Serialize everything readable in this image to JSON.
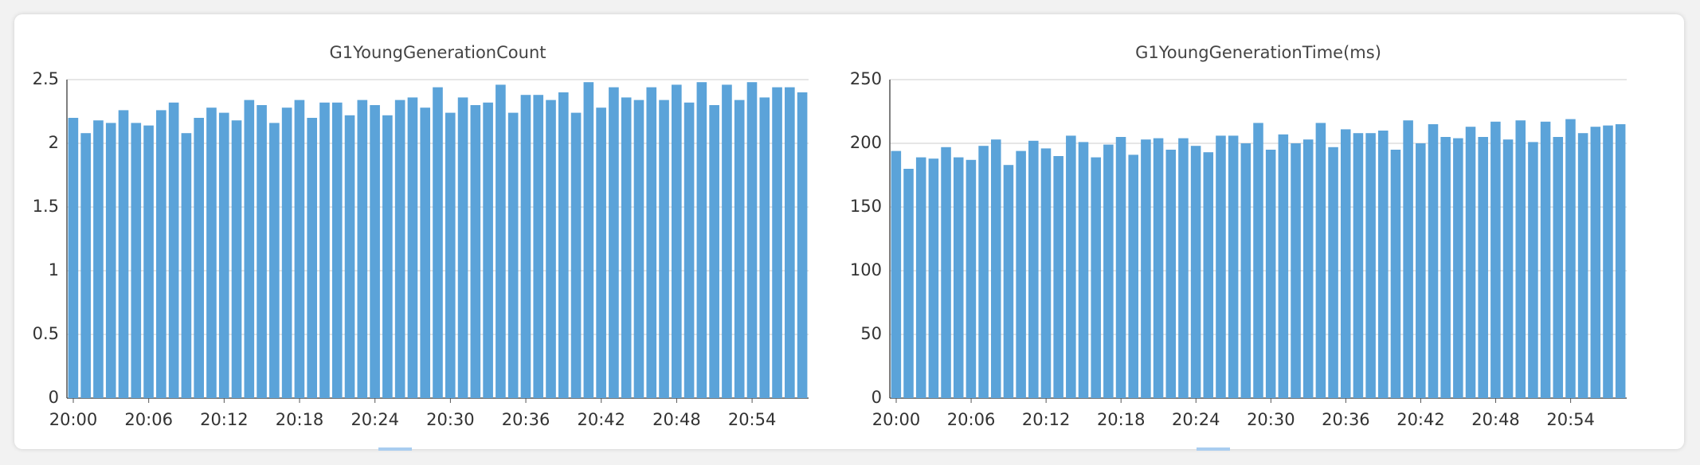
{
  "chart_data": [
    {
      "type": "bar",
      "title": "G1YoungGenerationCount",
      "color": "#5ba3d9",
      "grid": true,
      "categories": [
        "20:00",
        null,
        null,
        null,
        null,
        null,
        "20:06",
        null,
        null,
        null,
        null,
        null,
        "20:12",
        null,
        null,
        null,
        null,
        null,
        "20:18",
        null,
        null,
        null,
        null,
        null,
        "20:24",
        null,
        null,
        null,
        null,
        null,
        "20:30",
        null,
        null,
        null,
        null,
        null,
        "20:36",
        null,
        null,
        null,
        null,
        null,
        "20:42",
        null,
        null,
        null,
        null,
        null,
        "20:48",
        null,
        null,
        null,
        null,
        null,
        "20:54",
        null,
        null,
        null,
        null
      ],
      "values": [
        2.2,
        2.08,
        2.18,
        2.16,
        2.26,
        2.16,
        2.14,
        2.26,
        2.32,
        2.08,
        2.2,
        2.28,
        2.24,
        2.18,
        2.34,
        2.3,
        2.16,
        2.28,
        2.34,
        2.2,
        2.32,
        2.32,
        2.22,
        2.34,
        2.3,
        2.22,
        2.34,
        2.36,
        2.28,
        2.44,
        2.24,
        2.36,
        2.3,
        2.32,
        2.46,
        2.24,
        2.38,
        2.38,
        2.34,
        2.4,
        2.24,
        2.48,
        2.28,
        2.44,
        2.36,
        2.34,
        2.44,
        2.34,
        2.46,
        2.32,
        2.48,
        2.3,
        2.46,
        2.34,
        2.48,
        2.36,
        2.44,
        2.44,
        2.4
      ],
      "ylim": [
        0,
        2.5
      ],
      "yticks": [
        0,
        0.5,
        1,
        1.5,
        2,
        2.5
      ]
    },
    {
      "type": "bar",
      "title": "G1YoungGenerationTime(ms)",
      "color": "#5ba3d9",
      "grid": true,
      "categories": [
        "20:00",
        null,
        null,
        null,
        null,
        null,
        "20:06",
        null,
        null,
        null,
        null,
        null,
        "20:12",
        null,
        null,
        null,
        null,
        null,
        "20:18",
        null,
        null,
        null,
        null,
        null,
        "20:24",
        null,
        null,
        null,
        null,
        null,
        "20:30",
        null,
        null,
        null,
        null,
        null,
        "20:36",
        null,
        null,
        null,
        null,
        null,
        "20:42",
        null,
        null,
        null,
        null,
        null,
        "20:48",
        null,
        null,
        null,
        null,
        null,
        "20:54",
        null,
        null,
        null,
        null
      ],
      "values": [
        194,
        180,
        189,
        188,
        197,
        189,
        187,
        198,
        203,
        183,
        194,
        202,
        196,
        190,
        206,
        201,
        189,
        199,
        205,
        191,
        203,
        204,
        195,
        204,
        198,
        193,
        206,
        206,
        200,
        216,
        195,
        207,
        200,
        203,
        216,
        197,
        211,
        208,
        208,
        210,
        195,
        218,
        200,
        215,
        205,
        204,
        213,
        205,
        217,
        203,
        218,
        201,
        217,
        205,
        219,
        208,
        213,
        214,
        215
      ],
      "ylim": [
        0,
        250
      ],
      "yticks": [
        0,
        50,
        100,
        150,
        200,
        250
      ]
    }
  ]
}
